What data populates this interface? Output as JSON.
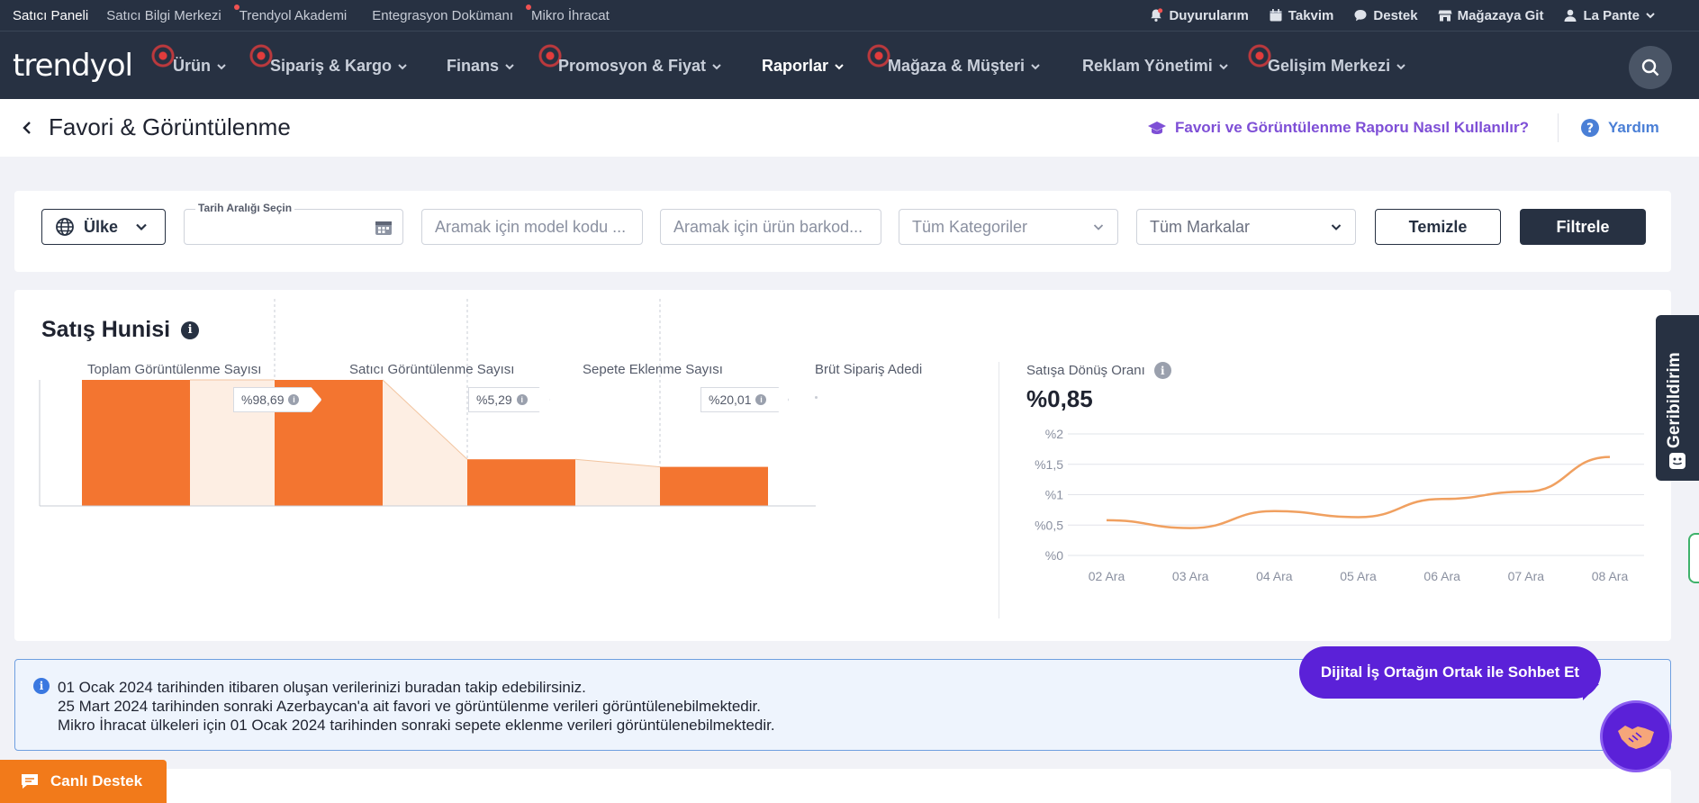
{
  "topbar": {
    "left_items": [
      {
        "label": "Satıcı Paneli",
        "active": true,
        "dot": false
      },
      {
        "label": "Satıcı Bilgi Merkezi",
        "active": false,
        "dot": false
      },
      {
        "label": "Trendyol Akademi",
        "active": false,
        "dot": true
      },
      {
        "label": "Entegrasyon Dokümanı",
        "active": false,
        "dot": false
      },
      {
        "label": "Mikro İhracat",
        "active": false,
        "dot": true
      }
    ],
    "right_items": {
      "announcements": "Duyurularım",
      "calendar": "Takvim",
      "support": "Destek",
      "store": "Mağazaya Git",
      "user": "La Pante"
    }
  },
  "nav": {
    "logo": "trendyol",
    "items": [
      {
        "label": "Ürün"
      },
      {
        "label": "Sipariş & Kargo"
      },
      {
        "label": "Finans"
      },
      {
        "label": "Promosyon & Fiyat"
      },
      {
        "label": "Raporlar"
      },
      {
        "label": "Mağaza & Müşteri"
      },
      {
        "label": "Reklam Yönetimi"
      },
      {
        "label": "Gelişim Merkezi"
      }
    ]
  },
  "page": {
    "title": "Favori & Görüntülenme",
    "howto_link": "Favori ve Görüntülenme Raporu Nasıl Kullanılır?",
    "help_link": "Yardım"
  },
  "filters": {
    "country_label": "Ülke",
    "date_label": "Tarih Aralığı Seçin",
    "date_value": "",
    "model_placeholder": "Aramak için model kodu ...",
    "barcode_placeholder": "Aramak için ürün barkod...",
    "category_placeholder": "Tüm Kategoriler",
    "brand_placeholder": "Tüm Markalar",
    "clear_label": "Temizle",
    "filter_label": "Filtrele"
  },
  "funnel": {
    "title": "Satış Hunisi",
    "columns": [
      {
        "label": "Toplam Görüntülenme Sayısı",
        "rate": "%98,69"
      },
      {
        "label": "Satıcı Görüntülenme Sayısı",
        "rate": "%5,29"
      },
      {
        "label": "Sepete Eklenme Sayısı",
        "rate": "%20,01"
      },
      {
        "label": "Brüt Sipariş Adedi",
        "rate": ""
      }
    ],
    "conversion_label": "Satışa Dönüş Oranı",
    "conversion_value": "%0,85"
  },
  "chart_data": {
    "type": "line",
    "x": [
      "02 Ara",
      "03 Ara",
      "04 Ara",
      "05 Ara",
      "06 Ara",
      "07 Ara",
      "08 Ara"
    ],
    "series": [
      {
        "values": [
          0.58,
          0.45,
          0.73,
          0.63,
          0.93,
          1.05,
          1.62
        ]
      }
    ],
    "yticks": [
      "%0",
      "%0,5",
      "%1",
      "%1,5",
      "%2"
    ],
    "ylim": [
      0,
      2
    ],
    "grid": true,
    "line_color": "#f0a060"
  },
  "funnel_chart_data": {
    "type": "bar",
    "categories": [
      "Toplam Görüntülenme Sayısı",
      "Satıcı Görüntülenme Sayısı",
      "Sepete Eklenme Sayısı",
      "Brüt Sipariş Adedi"
    ],
    "relative_values": [
      1.0,
      1.0,
      0.37,
      0.31
    ],
    "bar_color": "#f37530",
    "connector_color": "#fdeee3"
  },
  "banner": {
    "lines": [
      "01 Ocak 2024 tarihinden itibaren oluşan verilerinizi buradan takip edebilirsiniz.",
      "25 Mart 2024 tarihinden sonraki Azerbaycan'a ait favori ve görüntülenme verileri görüntülenebilmektedir.",
      "Mikro İhracat ülkeleri için 01 Ocak 2024 tarihinden sonraki sepete eklenme verileri görüntülenebilmektedir."
    ]
  },
  "floating": {
    "chat_label": "Dijital İş Ortağın Ortak ile Sohbet Et",
    "feedback_label": "Geribildirim",
    "live_support": "Canlı Destek"
  }
}
